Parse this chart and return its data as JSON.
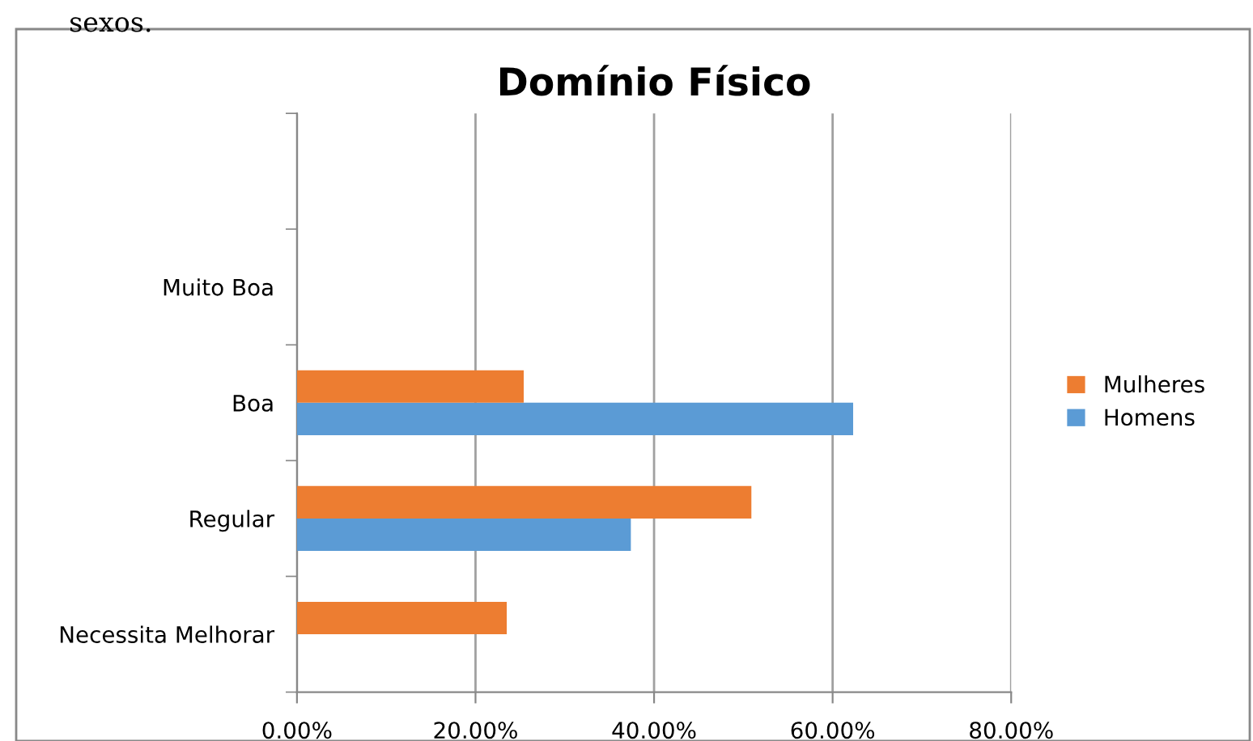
{
  "chart_data": {
    "type": "bar",
    "orientation": "horizontal",
    "title": "Domínio Físico",
    "annotations": [
      "sexos."
    ],
    "categories": [
      null,
      "Muito Boa",
      "Boa",
      "Regular",
      "Necessita Melhorar"
    ],
    "series": [
      {
        "name": "Homens",
        "color": "#5b9bd5",
        "values": [
          null,
          0,
          62.3,
          37.4,
          0
        ]
      },
      {
        "name": "Mulheres",
        "color": "#ed7d31",
        "values": [
          null,
          0,
          25.4,
          50.9,
          23.5
        ]
      }
    ],
    "xlim": [
      0,
      80
    ],
    "xticks": [
      {
        "value": 0,
        "label": "0.00%"
      },
      {
        "value": 20,
        "label": "20.00%"
      },
      {
        "value": 40,
        "label": "40.00%"
      },
      {
        "value": 60,
        "label": "60.00%"
      },
      {
        "value": 80,
        "label": "80.00%"
      }
    ],
    "grid": "x",
    "legend": "right"
  }
}
